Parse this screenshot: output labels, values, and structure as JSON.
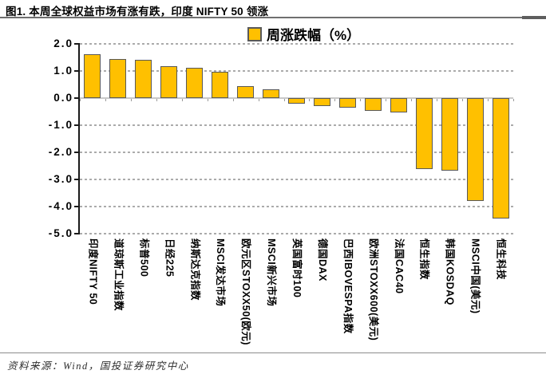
{
  "title": "图1. 本周全球权益市场有涨有跌，印度 NIFTY 50 领涨",
  "source": "资料来源：Wind，国投证券研究中心",
  "colors": {
    "bar_fill": "#FFC000",
    "bar_border": "#595959",
    "grid": "#ababab",
    "axis": "#1a1a1a",
    "rule": "#6f6f6f"
  },
  "chart_data": {
    "type": "bar",
    "legend": "周涨跌幅（%）",
    "legend_position": "top-center",
    "categories": [
      "印度NIFTY 50",
      "道琼斯工业指数",
      "标普500",
      "日经225",
      "纳斯达克指数",
      "MSCI发达市场",
      "欧元区STOXX50(欧元)",
      "MSCI新兴市场",
      "英国富时100",
      "德国DAX",
      "巴西IBOVESPA指数",
      "欧洲STOXX600(美元)",
      "法国CAC40",
      "恒生指数",
      "韩国KOSDAQ",
      "MSCI中国(美元)",
      "恒生科技"
    ],
    "values": [
      1.62,
      1.45,
      1.4,
      1.17,
      1.13,
      0.97,
      0.44,
      0.33,
      -0.21,
      -0.3,
      -0.36,
      -0.48,
      -0.52,
      -2.61,
      -2.68,
      -3.8,
      -4.45
    ],
    "ylim": [
      -5.0,
      2.0
    ],
    "ytick_step": 1.0,
    "yticks": [
      {
        "label": "2.0",
        "value": 2
      },
      {
        "label": "1.0",
        "value": 1
      },
      {
        "label": "0.0",
        "value": 0
      },
      {
        "label": "-1.0",
        "value": -1
      },
      {
        "label": "-2.0",
        "value": -2
      },
      {
        "label": "-3.0",
        "value": -3
      },
      {
        "label": "-4.0",
        "value": -4
      },
      {
        "label": "-5.0",
        "value": -5
      }
    ],
    "grid": "horizontal-dashed",
    "xlabel": "",
    "ylabel": ""
  }
}
